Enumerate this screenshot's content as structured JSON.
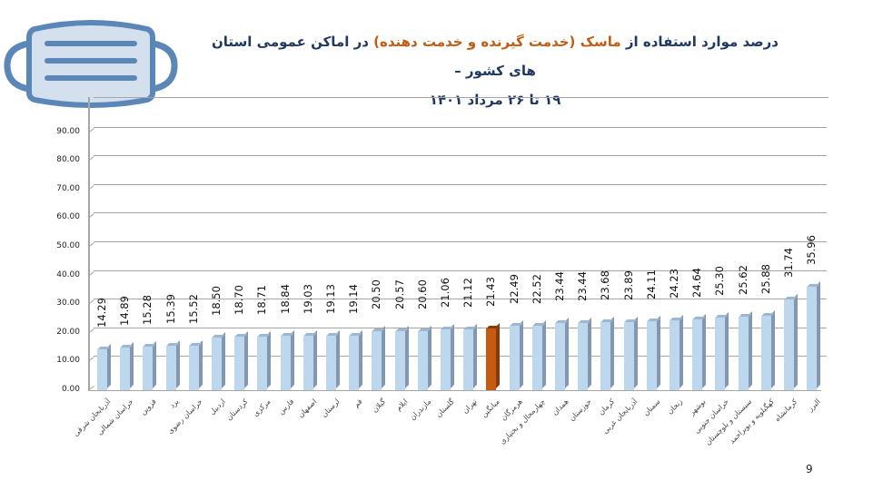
{
  "slide": {
    "title_line1_part1": "درصد موارد استفاده از ",
    "title_line1_highlight": "ماسک (خدمت گیرنده و خدمت دهنده)",
    "title_line1_part2": " در اماکن عمومی استان های کشور –",
    "title_line2": "۱۹ تا ۲۶ مرداد ۱۴۰۱",
    "page_number": "9",
    "icon": "face-mask-icon"
  },
  "colors": {
    "bar": "#bdd7ee",
    "bar_side": "#8497b0",
    "bar_top": "#9db6d2",
    "highlight_bar": "#c55a11",
    "highlight_side": "#843c0c",
    "title": "#1f3864",
    "title_highlight": "#c55a11",
    "mask_fill": "#d4e0ee",
    "mask_stroke": "#5b87b8"
  },
  "chart_data": {
    "type": "bar",
    "title": "درصد موارد استفاده از ماسک (خدمت گیرنده و خدمت دهنده) در اماکن عمومی استان های کشور – ۱۹ تا ۲۶ مرداد ۱۴۰۱",
    "xlabel": "",
    "ylabel": "",
    "ylim": [
      0,
      100
    ],
    "yticks": [
      "0.00",
      "10.00",
      "20.00",
      "30.00",
      "40.00",
      "50.00",
      "60.00",
      "70.00",
      "80.00",
      "90.00"
    ],
    "grid": true,
    "legend": null,
    "highlight_category": "میانگین",
    "categories": [
      "آذربایجان شرقی",
      "خراسان شمالی",
      "قزوین",
      "یزد",
      "خراسان رضوی",
      "اردبیل",
      "کردستان",
      "مرکزی",
      "فارس",
      "اصفهان",
      "لرستان",
      "قم",
      "گیلان",
      "ایلام",
      "مازندران",
      "گلستان",
      "تهران",
      "میانگین",
      "هرمزگان",
      "چهارمحال و بختیاری",
      "همدان",
      "خوزستان",
      "کرمان",
      "آذربایجان غربی",
      "سمنان",
      "زنجان",
      "بوشهر",
      "خراسان جنوبی",
      "سیستان و بلوچستان",
      "کهگیلویه و بویراحمد",
      "کرمانشاه",
      "البرز"
    ],
    "values": [
      14.29,
      14.89,
      15.28,
      15.39,
      15.52,
      18.5,
      18.7,
      18.71,
      18.84,
      19.03,
      19.13,
      19.14,
      20.5,
      20.57,
      20.6,
      21.06,
      21.12,
      21.43,
      22.49,
      22.52,
      23.44,
      23.44,
      23.68,
      23.89,
      24.11,
      24.23,
      24.64,
      25.3,
      25.62,
      25.88,
      31.74,
      35.96
    ],
    "value_labels": [
      "14.29",
      "14.89",
      "15.28",
      "15.39",
      "15.52",
      "18.50",
      "18.70",
      "18.71",
      "18.84",
      "19.03",
      "19.13",
      "19.14",
      "20.50",
      "20.57",
      "20.60",
      "21.06",
      "21.12",
      "21.43",
      "22.49",
      "22.52",
      "23.44",
      "23.44",
      "23.68",
      "23.89",
      "24.11",
      "24.23",
      "24.64",
      "25.30",
      "25.62",
      "25.88",
      "31.74",
      "35.96"
    ]
  }
}
